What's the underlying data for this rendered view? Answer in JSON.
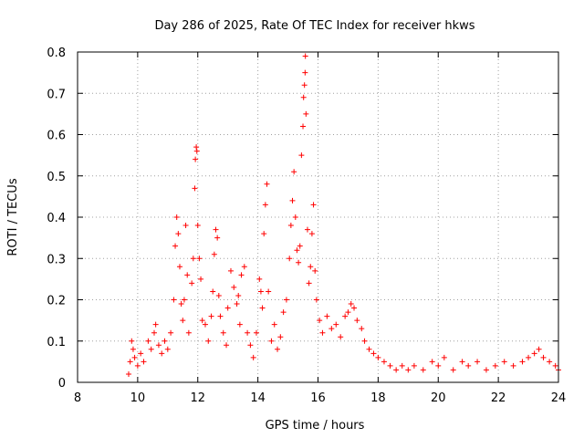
{
  "chart_data": {
    "type": "scatter",
    "title": "Day 286 of 2025, Rate Of TEC Index for receiver hkws",
    "xlabel": "GPS time / hours",
    "ylabel": "ROTI / TECUs",
    "xlim": [
      8,
      24
    ],
    "ylim": [
      0,
      0.8
    ],
    "grid": true,
    "marker": "+",
    "color": "#ff0000",
    "x_ticks": [
      8,
      10,
      12,
      14,
      16,
      18,
      20,
      22,
      24
    ],
    "x_tick_labels": [
      "8",
      "10",
      "12",
      "14",
      "16",
      "18",
      "20",
      "22",
      "24"
    ],
    "y_ticks": [
      0,
      0.1,
      0.2,
      0.3,
      0.4,
      0.5,
      0.6,
      0.7,
      0.8
    ],
    "y_tick_labels": [
      "0",
      "0.1",
      "0.2",
      "0.3",
      "0.4",
      "0.5",
      "0.6",
      "0.7",
      "0.8"
    ],
    "series": [
      {
        "name": "ROTI",
        "points": [
          [
            9.7,
            0.02
          ],
          [
            9.75,
            0.05
          ],
          [
            9.8,
            0.1
          ],
          [
            9.85,
            0.08
          ],
          [
            9.9,
            0.06
          ],
          [
            10.0,
            0.04
          ],
          [
            10.1,
            0.07
          ],
          [
            10.2,
            0.05
          ],
          [
            10.35,
            0.1
          ],
          [
            10.45,
            0.08
          ],
          [
            10.55,
            0.12
          ],
          [
            10.6,
            0.14
          ],
          [
            10.7,
            0.09
          ],
          [
            10.8,
            0.07
          ],
          [
            10.9,
            0.1
          ],
          [
            11.0,
            0.08
          ],
          [
            11.1,
            0.12
          ],
          [
            11.2,
            0.2
          ],
          [
            11.25,
            0.33
          ],
          [
            11.3,
            0.4
          ],
          [
            11.35,
            0.36
          ],
          [
            11.4,
            0.28
          ],
          [
            11.45,
            0.19
          ],
          [
            11.5,
            0.15
          ],
          [
            11.55,
            0.2
          ],
          [
            11.6,
            0.38
          ],
          [
            11.65,
            0.26
          ],
          [
            11.7,
            0.12
          ],
          [
            11.8,
            0.24
          ],
          [
            11.85,
            0.3
          ],
          [
            11.9,
            0.47
          ],
          [
            11.92,
            0.54
          ],
          [
            11.95,
            0.57
          ],
          [
            11.97,
            0.56
          ],
          [
            12.0,
            0.38
          ],
          [
            12.05,
            0.3
          ],
          [
            12.1,
            0.25
          ],
          [
            12.15,
            0.15
          ],
          [
            12.25,
            0.14
          ],
          [
            12.35,
            0.1
          ],
          [
            12.45,
            0.16
          ],
          [
            12.5,
            0.22
          ],
          [
            12.55,
            0.31
          ],
          [
            12.6,
            0.37
          ],
          [
            12.65,
            0.35
          ],
          [
            12.7,
            0.21
          ],
          [
            12.75,
            0.16
          ],
          [
            12.85,
            0.12
          ],
          [
            12.95,
            0.09
          ],
          [
            13.0,
            0.18
          ],
          [
            13.1,
            0.27
          ],
          [
            13.2,
            0.23
          ],
          [
            13.3,
            0.19
          ],
          [
            13.35,
            0.21
          ],
          [
            13.4,
            0.14
          ],
          [
            13.45,
            0.26
          ],
          [
            13.55,
            0.28
          ],
          [
            13.65,
            0.12
          ],
          [
            13.75,
            0.09
          ],
          [
            13.85,
            0.06
          ],
          [
            13.95,
            0.12
          ],
          [
            14.05,
            0.25
          ],
          [
            14.1,
            0.22
          ],
          [
            14.15,
            0.18
          ],
          [
            14.2,
            0.36
          ],
          [
            14.25,
            0.43
          ],
          [
            14.3,
            0.48
          ],
          [
            14.35,
            0.22
          ],
          [
            14.45,
            0.1
          ],
          [
            14.55,
            0.14
          ],
          [
            14.65,
            0.08
          ],
          [
            14.75,
            0.11
          ],
          [
            14.85,
            0.17
          ],
          [
            14.95,
            0.2
          ],
          [
            15.05,
            0.3
          ],
          [
            15.1,
            0.38
          ],
          [
            15.15,
            0.44
          ],
          [
            15.2,
            0.51
          ],
          [
            15.25,
            0.4
          ],
          [
            15.3,
            0.32
          ],
          [
            15.35,
            0.29
          ],
          [
            15.4,
            0.33
          ],
          [
            15.45,
            0.55
          ],
          [
            15.5,
            0.62
          ],
          [
            15.52,
            0.69
          ],
          [
            15.55,
            0.72
          ],
          [
            15.57,
            0.75
          ],
          [
            15.58,
            0.79
          ],
          [
            15.6,
            0.65
          ],
          [
            15.65,
            0.37
          ],
          [
            15.7,
            0.24
          ],
          [
            15.75,
            0.28
          ],
          [
            15.8,
            0.36
          ],
          [
            15.85,
            0.43
          ],
          [
            15.9,
            0.27
          ],
          [
            15.95,
            0.2
          ],
          [
            16.05,
            0.15
          ],
          [
            16.15,
            0.12
          ],
          [
            16.3,
            0.16
          ],
          [
            16.45,
            0.13
          ],
          [
            16.6,
            0.14
          ],
          [
            16.75,
            0.11
          ],
          [
            16.9,
            0.16
          ],
          [
            17.0,
            0.17
          ],
          [
            17.1,
            0.19
          ],
          [
            17.2,
            0.18
          ],
          [
            17.3,
            0.15
          ],
          [
            17.45,
            0.13
          ],
          [
            17.55,
            0.1
          ],
          [
            17.7,
            0.08
          ],
          [
            17.85,
            0.07
          ],
          [
            18.0,
            0.06
          ],
          [
            18.2,
            0.05
          ],
          [
            18.4,
            0.04
          ],
          [
            18.6,
            0.03
          ],
          [
            18.8,
            0.04
          ],
          [
            19.0,
            0.03
          ],
          [
            19.2,
            0.04
          ],
          [
            19.5,
            0.03
          ],
          [
            19.8,
            0.05
          ],
          [
            20.0,
            0.04
          ],
          [
            20.2,
            0.06
          ],
          [
            20.5,
            0.03
          ],
          [
            20.8,
            0.05
          ],
          [
            21.0,
            0.04
          ],
          [
            21.3,
            0.05
          ],
          [
            21.6,
            0.03
          ],
          [
            21.9,
            0.04
          ],
          [
            22.2,
            0.05
          ],
          [
            22.5,
            0.04
          ],
          [
            22.8,
            0.05
          ],
          [
            23.0,
            0.06
          ],
          [
            23.2,
            0.07
          ],
          [
            23.35,
            0.08
          ],
          [
            23.5,
            0.06
          ],
          [
            23.7,
            0.05
          ],
          [
            23.9,
            0.04
          ],
          [
            24.0,
            0.03
          ]
        ]
      }
    ]
  }
}
